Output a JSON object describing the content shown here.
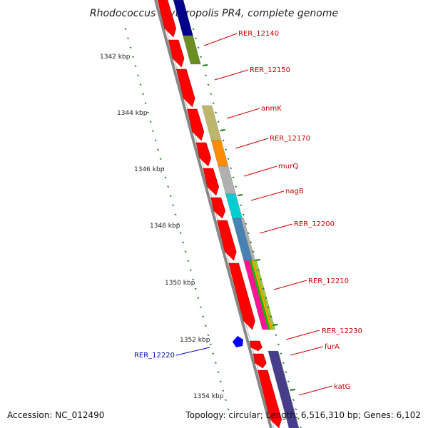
{
  "title": "Rhodococcus erythropolis PR4, complete genome",
  "footer": {
    "accession": "Accession: NC_012490",
    "summary": "Topology: circular; Length: 6,516,310 bp; Genes: 6,102"
  },
  "colors": {
    "cds_red": "#ff0000",
    "label_red": "#cc0000",
    "label_blue": "#0000cc",
    "tick_green": "#1a7a1a",
    "backbone": "#888888"
  },
  "kbp_ticks": [
    {
      "label": "1342 kbp"
    },
    {
      "label": "1344 kbp"
    },
    {
      "label": "1346 kbp"
    },
    {
      "label": "1348 kbp"
    },
    {
      "label": "1350 kbp"
    },
    {
      "label": "1352 kbp"
    },
    {
      "label": "1354 kbp"
    }
  ],
  "gene_labels": [
    {
      "text": "RER_12140",
      "color": "#cc0000"
    },
    {
      "text": "RER_12150",
      "color": "#cc0000"
    },
    {
      "text": "anmK",
      "color": "#cc0000"
    },
    {
      "text": "RER_12170",
      "color": "#cc0000"
    },
    {
      "text": "murQ",
      "color": "#cc0000"
    },
    {
      "text": "nagB",
      "color": "#cc0000"
    },
    {
      "text": "RER_12200",
      "color": "#cc0000"
    },
    {
      "text": "RER_12210",
      "color": "#cc0000"
    },
    {
      "text": "RER_12230",
      "color": "#cc0000"
    },
    {
      "text": "furA",
      "color": "#cc0000"
    },
    {
      "text": "katG",
      "color": "#cc0000"
    },
    {
      "text": "RER_12220",
      "color": "#0000cc"
    }
  ]
}
